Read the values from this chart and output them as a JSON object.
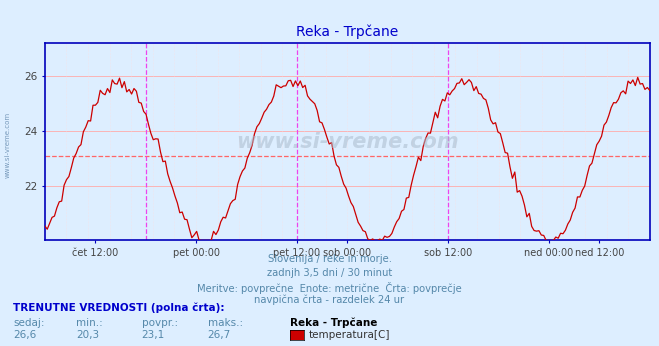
{
  "title": "Reka - Trpčane",
  "bg_color": "#ddeeff",
  "plot_bg_color": "#ddeeff",
  "line_color": "#cc0000",
  "avg_line_color": "#ff6666",
  "avg_line_value": 23.1,
  "y_min": 20.0,
  "y_max": 27.2,
  "y_ticks": [
    22,
    24,
    26
  ],
  "x_tick_labels": [
    "čet 12:00",
    "pet 00:00",
    "pet 12:00",
    "sob 00:00",
    "sob 12:00",
    "ned 00:00",
    "ned 12:00"
  ],
  "x_tick_positions": [
    0.0833,
    0.25,
    0.4167,
    0.5,
    0.6667,
    0.8333,
    0.9167
  ],
  "vline_positions": [
    0.1667,
    0.4167,
    0.6667
  ],
  "vline_color": "#ee44ee",
  "grid_color_h": "#ffaaaa",
  "grid_color_v": "#ffdddd",
  "axis_color": "#0000bb",
  "watermark": "www.si-vreme.com",
  "sub_text1": "Slovenija / reke in morje.",
  "sub_text2": "zadnjh 3,5 dni / 30 minut",
  "sub_text3": "Meritve: povprečne  Enote: metrične  Črta: povprečje",
  "sub_text4": "navpična črta - razdelek 24 ur",
  "bottom_label1": "TRENUTNE VREDNOSTI (polna črta):",
  "bottom_cols": [
    "sedaj:",
    "min.:",
    "povpr.:",
    "maks.:"
  ],
  "bottom_vals": [
    "26,6",
    "20,3",
    "23,1",
    "26,7"
  ],
  "legend_station": "Reka - Trpčane",
  "legend_series": "temperatura[C]",
  "legend_color": "#cc0000",
  "num_points": 252,
  "left_label": "www.si-vreme.com"
}
